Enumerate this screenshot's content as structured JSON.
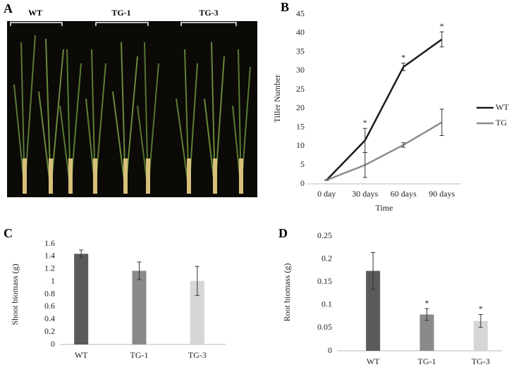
{
  "photo": {
    "panel": "A",
    "labels": [
      "WT",
      "TG-1",
      "TG-3"
    ]
  },
  "chart_data": [
    {
      "type": "line",
      "panel": "B",
      "x_label": "Time",
      "y_label": "Tiller Number",
      "categories": [
        "0 day",
        "30 days",
        "60 days",
        "90 days"
      ],
      "series": [
        {
          "name": "WT",
          "color": "#1a1a1a",
          "values": [
            1,
            11.5,
            31,
            38.3
          ],
          "errors": [
            0,
            3.2,
            1,
            2
          ]
        },
        {
          "name": "TG",
          "color": "#8c8c8c",
          "values": [
            1,
            5,
            10.3,
            16.3
          ],
          "errors": [
            0,
            3.3,
            0.6,
            3.5
          ]
        }
      ],
      "annotations": [
        {
          "x": "30 days",
          "text": "*"
        },
        {
          "x": "60 days",
          "text": "*"
        },
        {
          "x": "90 days",
          "text": "*"
        }
      ],
      "ylim": [
        0,
        45
      ],
      "yticks": [
        0,
        5,
        10,
        15,
        20,
        25,
        30,
        35,
        40,
        45
      ],
      "legend": "right"
    },
    {
      "type": "bar",
      "panel": "C",
      "y_label": "Shoot biomass (g)",
      "categories": [
        "WT",
        "TG-1",
        "TG-3"
      ],
      "values": [
        1.44,
        1.17,
        1.01
      ],
      "errors": [
        0.06,
        0.14,
        0.23
      ],
      "colors": [
        "#5a5a5a",
        "#8a8a8a",
        "#d6d6d6"
      ],
      "annotations": [],
      "ylim": [
        0,
        1.6
      ],
      "yticks": [
        0,
        0.2,
        0.4,
        0.6,
        0.8,
        1,
        1.2,
        1.4,
        1.6
      ]
    },
    {
      "type": "bar",
      "panel": "D",
      "y_label": "Root biomass (g)",
      "categories": [
        "WT",
        "TG-1",
        "TG-3"
      ],
      "values": [
        0.174,
        0.079,
        0.065
      ],
      "errors": [
        0.04,
        0.013,
        0.014
      ],
      "colors": [
        "#5a5a5a",
        "#8a8a8a",
        "#d6d6d6"
      ],
      "annotations": [
        {
          "x": "TG-1",
          "text": "*"
        },
        {
          "x": "TG-3",
          "text": "*"
        }
      ],
      "ylim": [
        0,
        0.25
      ],
      "yticks": [
        0,
        0.05,
        0.1,
        0.15,
        0.2,
        0.25
      ]
    }
  ]
}
